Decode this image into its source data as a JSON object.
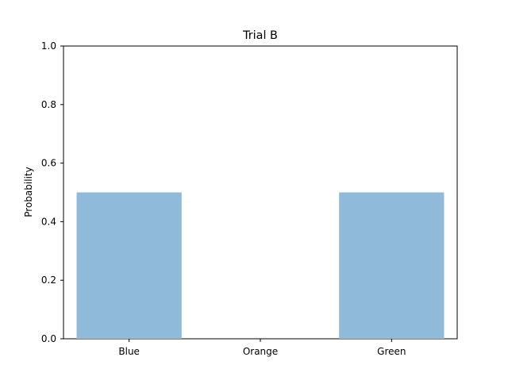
{
  "chart_data": {
    "type": "bar",
    "title": "Trial B",
    "xlabel": "",
    "ylabel": "Probability",
    "categories": [
      "Blue",
      "Orange",
      "Green"
    ],
    "values": [
      0.5,
      0.0,
      0.5
    ],
    "ylim": [
      0,
      1.0
    ],
    "yticks": [
      "0.0",
      "0.2",
      "0.4",
      "0.6",
      "0.8",
      "1.0"
    ],
    "bar_color": "#8fbad9",
    "grid": false,
    "legend": "none"
  }
}
